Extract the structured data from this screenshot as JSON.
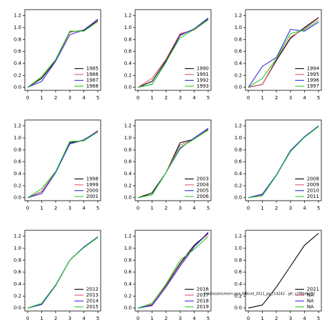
{
  "chart_data": [
    {
      "type": "line",
      "x": [
        0,
        1,
        2,
        3,
        4,
        5
      ],
      "xlim": [
        -0.2,
        5.2
      ],
      "xticks": [
        0,
        1,
        2,
        3,
        4,
        5
      ],
      "ylim": [
        -0.05,
        1.3
      ],
      "yticks": [
        {
          "value": 0,
          "label": "0.0"
        },
        0.2,
        0.4,
        0.6,
        0.8,
        {
          "value": 1,
          "label": "1.0"
        },
        1.2
      ],
      "legend": "bottom-right",
      "series": [
        {
          "name": "1985",
          "color": "#000000",
          "values": [
            0,
            0.15,
            0.45,
            0.93,
            0.95,
            1.12
          ]
        },
        {
          "name": "1986",
          "color": "#df536b",
          "values": [
            0,
            0.17,
            0.46,
            0.92,
            0.96,
            1.13
          ]
        },
        {
          "name": "1987",
          "color": "#2e2ee6",
          "values": [
            0,
            0.1,
            0.44,
            0.88,
            0.96,
            1.14
          ]
        },
        {
          "name": "1988",
          "color": "#22cc22",
          "values": [
            0,
            0.18,
            0.47,
            0.94,
            0.94,
            1.1
          ]
        }
      ]
    },
    {
      "type": "line",
      "x": [
        0,
        1,
        2,
        3,
        4,
        5
      ],
      "xlim": [
        -0.2,
        5.2
      ],
      "xticks": [
        0,
        1,
        2,
        3,
        4,
        5
      ],
      "ylim": [
        -0.05,
        1.3
      ],
      "yticks": [
        {
          "value": 0,
          "label": "0.0"
        },
        0.2,
        0.4,
        0.6,
        0.8,
        {
          "value": 1,
          "label": "1.0"
        },
        1.2
      ],
      "legend": "bottom-right",
      "series": [
        {
          "name": "1990",
          "color": "#000000",
          "values": [
            0,
            0.1,
            0.45,
            0.88,
            0.97,
            1.14
          ]
        },
        {
          "name": "1991",
          "color": "#df536b",
          "values": [
            0,
            0.15,
            0.47,
            0.9,
            0.96,
            1.13
          ]
        },
        {
          "name": "1992",
          "color": "#2e2ee6",
          "values": [
            0,
            0.05,
            0.42,
            0.87,
            0.98,
            1.16
          ]
        },
        {
          "name": "1993",
          "color": "#22cc22",
          "values": [
            0,
            0.05,
            0.43,
            0.83,
            0.97,
            1.13
          ]
        }
      ]
    },
    {
      "type": "line",
      "x": [
        0,
        1,
        2,
        3,
        4,
        5
      ],
      "xlim": [
        -0.2,
        5.2
      ],
      "xticks": [
        0,
        1,
        2,
        3,
        4,
        5
      ],
      "ylim": [
        -0.05,
        1.3
      ],
      "yticks": [
        {
          "value": 0,
          "label": "0.0"
        },
        0.2,
        0.4,
        0.6,
        0.8,
        {
          "value": 1,
          "label": "1.0"
        },
        1.2
      ],
      "legend": "bottom-right",
      "series": [
        {
          "name": "1994",
          "color": "#000000",
          "values": [
            0,
            0.05,
            0.45,
            0.82,
            1.0,
            1.17
          ]
        },
        {
          "name": "1995",
          "color": "#df536b",
          "values": [
            0,
            0.05,
            0.47,
            0.84,
            0.98,
            1.16
          ]
        },
        {
          "name": "1996",
          "color": "#2e2ee6",
          "values": [
            0,
            0.35,
            0.5,
            0.97,
            0.94,
            1.09
          ]
        },
        {
          "name": "1997",
          "color": "#22cc22",
          "values": [
            0,
            0.15,
            0.48,
            0.9,
            0.96,
            1.12
          ]
        }
      ]
    },
    {
      "type": "line",
      "x": [
        0,
        1,
        2,
        3,
        4,
        5
      ],
      "xlim": [
        -0.2,
        5.2
      ],
      "xticks": [
        0,
        1,
        2,
        3,
        4,
        5
      ],
      "ylim": [
        -0.05,
        1.3
      ],
      "yticks": [
        {
          "value": 0,
          "label": "0.0"
        },
        0.2,
        0.4,
        0.6,
        0.8,
        {
          "value": 1,
          "label": "1.0"
        },
        1.2
      ],
      "legend": "bottom-right",
      "series": [
        {
          "name": "1998",
          "color": "#000000",
          "values": [
            0,
            0.1,
            0.43,
            0.92,
            0.96,
            1.12
          ]
        },
        {
          "name": "1999",
          "color": "#df536b",
          "values": [
            0,
            0.1,
            0.43,
            0.9,
            0.96,
            1.12
          ]
        },
        {
          "name": "2000",
          "color": "#2e2ee6",
          "values": [
            0,
            0.07,
            0.42,
            0.9,
            0.97,
            1.11
          ]
        },
        {
          "name": "2001",
          "color": "#22cc22",
          "values": [
            0,
            0.15,
            0.44,
            0.94,
            0.95,
            1.1
          ]
        }
      ]
    },
    {
      "type": "line",
      "x": [
        0,
        1,
        2,
        3,
        4,
        5
      ],
      "xlim": [
        -0.2,
        5.2
      ],
      "xticks": [
        0,
        1,
        2,
        3,
        4,
        5
      ],
      "ylim": [
        -0.05,
        1.3
      ],
      "yticks": [
        {
          "value": 0,
          "label": "0.0"
        },
        0.2,
        0.4,
        0.6,
        0.8,
        {
          "value": 1,
          "label": "1.0"
        },
        1.2
      ],
      "legend": "bottom-right",
      "series": [
        {
          "name": "2003",
          "color": "#000000",
          "values": [
            0,
            0.08,
            0.42,
            0.92,
            0.98,
            1.14
          ]
        },
        {
          "name": "2004",
          "color": "#df536b",
          "values": [
            0,
            0.05,
            0.42,
            0.88,
            0.98,
            1.15
          ]
        },
        {
          "name": "2005",
          "color": "#2e2ee6",
          "values": [
            0,
            0.05,
            0.42,
            0.82,
            1.0,
            1.16
          ]
        },
        {
          "name": "2006",
          "color": "#22cc22",
          "values": [
            0,
            0.05,
            0.42,
            0.84,
            0.98,
            1.13
          ]
        }
      ]
    },
    {
      "type": "line",
      "x": [
        0,
        1,
        2,
        3,
        4,
        5
      ],
      "xlim": [
        -0.2,
        5.2
      ],
      "xticks": [
        0,
        1,
        2,
        3,
        4,
        5
      ],
      "ylim": [
        -0.05,
        1.3
      ],
      "yticks": [
        {
          "value": 0,
          "label": "0.0"
        },
        0.2,
        0.4,
        0.6,
        0.8,
        {
          "value": 1,
          "label": "1.0"
        },
        1.2
      ],
      "legend": "bottom-right",
      "series": [
        {
          "name": "2008",
          "color": "#000000",
          "values": [
            0,
            0.05,
            0.38,
            0.78,
            1.02,
            1.2
          ]
        },
        {
          "name": "2009",
          "color": "#df536b",
          "values": [
            0,
            0.05,
            0.38,
            0.78,
            1.02,
            1.2
          ]
        },
        {
          "name": "2010",
          "color": "#2e2ee6",
          "values": [
            0,
            0.06,
            0.38,
            0.79,
            1.02,
            1.2
          ]
        },
        {
          "name": "2011",
          "color": "#22cc22",
          "values": [
            0,
            0.03,
            0.37,
            0.77,
            1.01,
            1.19
          ]
        }
      ]
    },
    {
      "type": "line",
      "x": [
        0,
        1,
        2,
        3,
        4,
        5
      ],
      "xlim": [
        -0.2,
        5.2
      ],
      "xticks": [
        0,
        1,
        2,
        3,
        4,
        5
      ],
      "ylim": [
        -0.05,
        1.3
      ],
      "yticks": [
        {
          "value": 0,
          "label": "0.0"
        },
        0.2,
        0.4,
        0.6,
        0.8,
        {
          "value": 1,
          "label": "1.0"
        },
        1.2
      ],
      "legend": "bottom-right",
      "series": [
        {
          "name": "2012",
          "color": "#000000",
          "values": [
            0,
            0.06,
            0.38,
            0.8,
            1.02,
            1.19
          ]
        },
        {
          "name": "2013",
          "color": "#df536b",
          "values": [
            0,
            0.06,
            0.38,
            0.8,
            1.02,
            1.19
          ]
        },
        {
          "name": "2014",
          "color": "#2e2ee6",
          "values": [
            0,
            0.06,
            0.38,
            0.8,
            1.02,
            1.19
          ]
        },
        {
          "name": "2015",
          "color": "#22cc22",
          "values": [
            0,
            0.08,
            0.39,
            0.8,
            1.01,
            1.18
          ]
        }
      ]
    },
    {
      "type": "line",
      "x": [
        0,
        1,
        2,
        3,
        4,
        5
      ],
      "xlim": [
        -0.2,
        5.2
      ],
      "xticks": [
        0,
        1,
        2,
        3,
        4,
        5
      ],
      "ylim": [
        -0.05,
        1.3
      ],
      "yticks": [
        {
          "value": 0,
          "label": "0.0"
        },
        0.2,
        0.4,
        0.6,
        0.8,
        {
          "value": 1,
          "label": "1.0"
        },
        1.2
      ],
      "legend": "bottom-right",
      "annotation": "bias/assessment.app_WBcod_2021_pp_r14242 . git: c2f8bdb2fd",
      "series": [
        {
          "name": "2016",
          "color": "#000000",
          "values": [
            0,
            0.05,
            0.38,
            0.75,
            1.05,
            1.25
          ]
        },
        {
          "name": "2017",
          "color": "#df536b",
          "values": [
            0,
            0.06,
            0.37,
            0.73,
            1.03,
            1.24
          ]
        },
        {
          "name": "2018",
          "color": "#2e2ee6",
          "values": [
            0,
            0.04,
            0.35,
            0.7,
            1.02,
            1.27
          ]
        },
        {
          "name": "2019",
          "color": "#22cc22",
          "values": [
            0,
            0.08,
            0.4,
            0.8,
            0.98,
            1.2
          ]
        }
      ]
    },
    {
      "type": "line",
      "x": [
        0,
        1,
        2,
        3,
        4,
        5
      ],
      "xlim": [
        -0.2,
        5.2
      ],
      "xticks": [
        0,
        1,
        2,
        3,
        4,
        5
      ],
      "ylim": [
        -0.05,
        1.3
      ],
      "yticks": [
        {
          "value": 0,
          "label": "0.0"
        },
        0.2,
        0.4,
        0.6,
        0.8,
        {
          "value": 1,
          "label": "1.0"
        },
        1.2
      ],
      "legend": "bottom-right",
      "series": [
        {
          "name": "2021",
          "color": "#000000",
          "values": [
            0,
            0.05,
            0.35,
            0.7,
            1.05,
            1.25
          ]
        },
        {
          "name": "NA",
          "color": "#df536b",
          "values": [
            null,
            null,
            null,
            null,
            null,
            null
          ]
        },
        {
          "name": "NA",
          "color": "#2e2ee6",
          "values": [
            null,
            null,
            null,
            null,
            null,
            null
          ]
        },
        {
          "name": "NA",
          "color": "#22cc22",
          "values": [
            null,
            null,
            null,
            null,
            null,
            null
          ]
        }
      ]
    }
  ]
}
